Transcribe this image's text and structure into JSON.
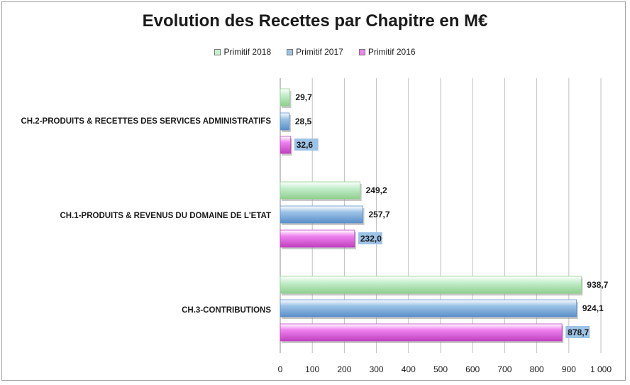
{
  "chart_data": {
    "type": "bar",
    "orientation": "horizontal",
    "title": "Evolution des Recettes par Chapitre en M€",
    "categories": [
      "CH.2-PRODUITS & RECETTES DES SERVICES ADMINISTRATIFS",
      "CH.1-PRODUITS & REVENUS DU DOMAINE DE L'ETAT",
      "CH.3-CONTRIBUTIONS"
    ],
    "series": [
      {
        "name": "Primitif 2018",
        "color": "#c6efce",
        "values": [
          29.7,
          249.2,
          938.7
        ],
        "labels": [
          "29,7",
          "249,2",
          "938,7"
        ]
      },
      {
        "name": "Primitif 2017",
        "color": "#9dc3e6",
        "values": [
          28.5,
          257.7,
          924.1
        ],
        "labels": [
          "28,5",
          "257,7",
          "924,1"
        ]
      },
      {
        "name": "Primitif 2016",
        "color": "#ee82ee",
        "values": [
          32.6,
          232.0,
          878.7
        ],
        "labels": [
          "32,6",
          "232,0",
          "878,7"
        ]
      }
    ],
    "xlim": [
      0,
      1000
    ],
    "xticks": [
      0,
      100,
      200,
      300,
      400,
      500,
      600,
      700,
      800,
      900,
      1000
    ],
    "xtick_labels": [
      "0",
      "100",
      "200",
      "300",
      "400",
      "500",
      "600",
      "700",
      "800",
      "900",
      "1 000"
    ],
    "grid": true,
    "legend_position": "top"
  }
}
